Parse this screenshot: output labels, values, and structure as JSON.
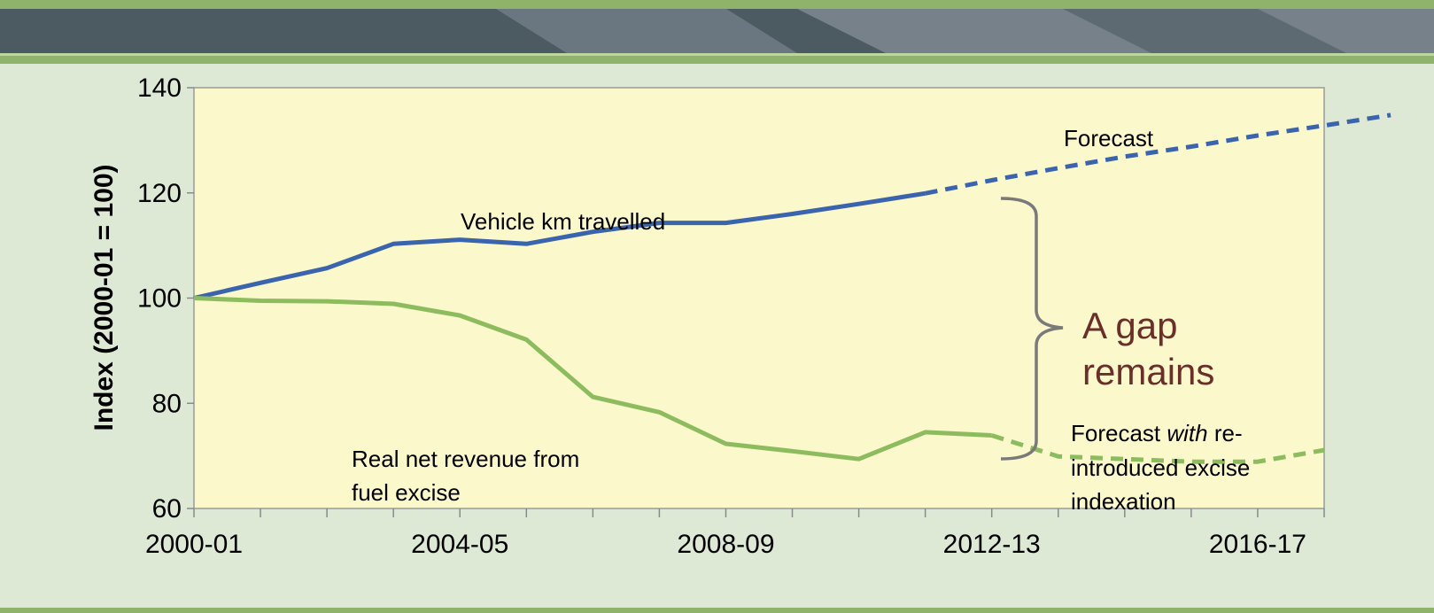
{
  "colors": {
    "vehicle_series": "#3b64ae",
    "revenue_series": "#8dbc5f",
    "plot_background": "#fbf8cc",
    "gap_text": "#6b2f2a",
    "brace": "#7a7a7a"
  },
  "chart_data": {
    "type": "line",
    "xlabel": "",
    "ylabel": "Index (2000-01 = 100)",
    "ylim": [
      60,
      140
    ],
    "yticks": [
      "60",
      "80",
      "100",
      "120",
      "140"
    ],
    "x_categories": [
      "2000-01",
      "2001-02",
      "2002-03",
      "2003-04",
      "2004-05",
      "2005-06",
      "2006-07",
      "2007-08",
      "2008-09",
      "2009-10",
      "2010-11",
      "2011-12",
      "2012-13",
      "2013-14",
      "2014-15",
      "2015-16",
      "2016-17",
      "2017-18"
    ],
    "x_tick_labels": [
      "2000-01",
      "2004-05",
      "2008-09",
      "2012-13",
      "2016-17"
    ],
    "grid": false,
    "series": [
      {
        "key": "vehicle_actual",
        "values": [
          100,
          102.9,
          105.7,
          110.3,
          111.1,
          110.3,
          112.6,
          114.3,
          114.3,
          116,
          117.9,
          119.9
        ],
        "start_index": 0,
        "style": "solid"
      },
      {
        "key": "vehicle_forecast",
        "values": [
          119.9,
          122.4,
          124.7,
          126.9,
          128.8,
          130.9,
          132.8,
          134.8
        ],
        "start_index": 11,
        "style": "dashed"
      },
      {
        "key": "revenue_actual",
        "values": [
          100,
          99.5,
          99.4,
          98.9,
          96.7,
          92.1,
          81.2,
          78.3,
          72.3,
          70.9,
          69.4,
          74.5,
          73.9
        ],
        "start_index": 0,
        "style": "solid"
      },
      {
        "key": "revenue_forecast",
        "values": [
          73.9,
          69.9,
          69.4,
          68.9,
          68.9,
          71.1
        ],
        "start_index": 12,
        "style": "dashed"
      }
    ],
    "annotations": {
      "vehicle_label": "Vehicle km travelled",
      "forecast_label": "Forecast",
      "revenue_label_line1": "Real net revenue from",
      "revenue_label_line2": "fuel excise",
      "forecast_with_line1_pre": "Forecast ",
      "forecast_with_line1_em": "with",
      "forecast_with_line1_post": " re-",
      "forecast_with_line2": "introduced excise",
      "forecast_with_line3": "indexation",
      "gap_line1": "A gap",
      "gap_line2": "remains"
    }
  }
}
